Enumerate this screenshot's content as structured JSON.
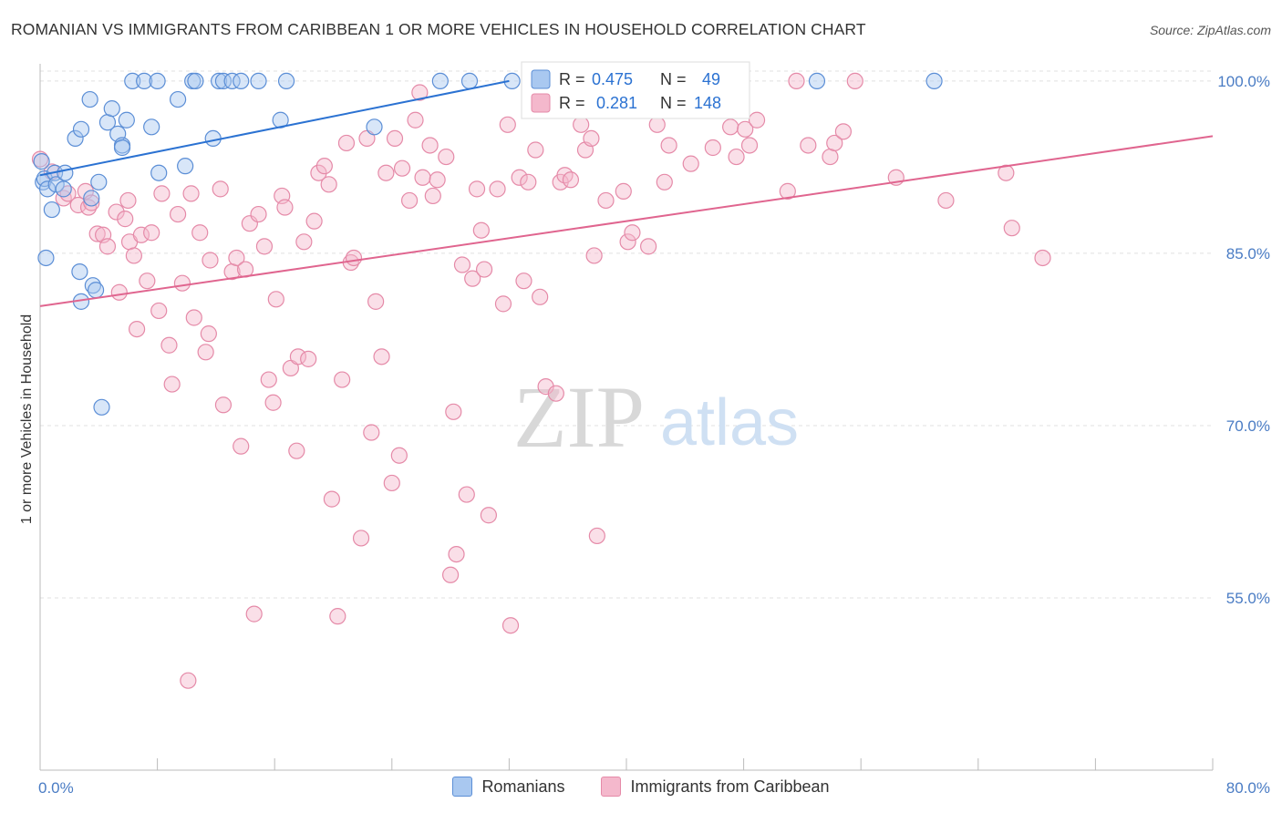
{
  "source_label": "Source: ZipAtlas.com",
  "watermark": {
    "zip": "ZIP",
    "atlas": "atlas"
  },
  "colors": {
    "blue_fill": "#a9c8f0",
    "blue_stroke": "#5b8ed6",
    "blue_line": "#2b72d2",
    "pink_fill": "#f4b8cc",
    "pink_stroke": "#e58aa8",
    "pink_line": "#e0658f",
    "tick_label": "#4a7cc4",
    "grid": "#e0e0e0"
  },
  "chart_data": {
    "type": "scatter",
    "title": "ROMANIAN VS IMMIGRANTS FROM CARIBBEAN 1 OR MORE VEHICLES IN HOUSEHOLD CORRELATION CHART",
    "xlabel": "",
    "ylabel": "1 or more Vehicles in Household",
    "xlim": [
      0,
      80
    ],
    "ylim": [
      40,
      101.5
    ],
    "x_tick_labels": [
      "0.0%",
      "80.0%"
    ],
    "y_ticks": [
      100,
      85,
      70,
      55
    ],
    "y_tick_labels": [
      "100.0%",
      "85.0%",
      "70.0%",
      "55.0%"
    ],
    "grid": true,
    "legend_position": "top-center",
    "series": [
      {
        "name": "Romanians",
        "color": "#a9c8f0",
        "R": "0.475",
        "N": "49",
        "trend": {
          "x": [
            0,
            32
          ],
          "y": [
            91.8,
            100
          ]
        },
        "points": [
          [
            0.1,
            93.0
          ],
          [
            0.2,
            91.2
          ],
          [
            0.3,
            91.5
          ],
          [
            0.5,
            90.6
          ],
          [
            0.4,
            84.6
          ],
          [
            1.0,
            92.0
          ],
          [
            1.1,
            91.0
          ],
          [
            0.8,
            88.8
          ],
          [
            1.7,
            92.0
          ],
          [
            1.6,
            90.6
          ],
          [
            2.4,
            95.0
          ],
          [
            2.8,
            95.8
          ],
          [
            2.7,
            83.4
          ],
          [
            2.8,
            80.8
          ],
          [
            3.5,
            89.8
          ],
          [
            3.4,
            98.4
          ],
          [
            4.0,
            91.2
          ],
          [
            3.6,
            82.2
          ],
          [
            3.8,
            81.8
          ],
          [
            4.2,
            71.6
          ],
          [
            4.6,
            96.4
          ],
          [
            4.9,
            97.6
          ],
          [
            5.3,
            95.4
          ],
          [
            5.6,
            94.4
          ],
          [
            5.6,
            94.2
          ],
          [
            5.9,
            96.6
          ],
          [
            6.3,
            100.0
          ],
          [
            7.1,
            100.0
          ],
          [
            7.6,
            96.0
          ],
          [
            8.0,
            100.0
          ],
          [
            8.1,
            92.0
          ],
          [
            9.4,
            98.4
          ],
          [
            9.9,
            92.6
          ],
          [
            10.4,
            100.0
          ],
          [
            10.6,
            100.0
          ],
          [
            11.8,
            95.0
          ],
          [
            12.2,
            100.0
          ],
          [
            12.5,
            100.0
          ],
          [
            13.1,
            100.0
          ],
          [
            13.7,
            100.0
          ],
          [
            14.9,
            100.0
          ],
          [
            16.4,
            96.6
          ],
          [
            16.8,
            100.0
          ],
          [
            22.8,
            96.0
          ],
          [
            27.3,
            100.0
          ],
          [
            29.3,
            100.0
          ],
          [
            32.2,
            100.0
          ],
          [
            35.6,
            100.0
          ],
          [
            53.0,
            100.0
          ],
          [
            61.0,
            100.0
          ]
        ]
      },
      {
        "name": "Immigrants from Caribbean",
        "color": "#f4b8cc",
        "R": "0.281",
        "N": "148",
        "trend": {
          "x": [
            0,
            80
          ],
          "y": [
            80.4,
            95.2
          ]
        },
        "points": [
          [
            0.0,
            93.2
          ],
          [
            0.8,
            92.1
          ],
          [
            1.6,
            89.8
          ],
          [
            1.9,
            90.2
          ],
          [
            2.6,
            89.2
          ],
          [
            3.3,
            89.0
          ],
          [
            3.1,
            90.4
          ],
          [
            3.5,
            89.4
          ],
          [
            3.9,
            86.7
          ],
          [
            4.3,
            86.6
          ],
          [
            4.6,
            85.6
          ],
          [
            5.2,
            88.6
          ],
          [
            5.4,
            81.6
          ],
          [
            5.8,
            88.0
          ],
          [
            6.0,
            89.6
          ],
          [
            6.1,
            86.0
          ],
          [
            6.4,
            84.8
          ],
          [
            6.6,
            78.4
          ],
          [
            6.9,
            86.6
          ],
          [
            7.3,
            82.6
          ],
          [
            7.6,
            86.8
          ],
          [
            8.1,
            80.0
          ],
          [
            8.3,
            90.2
          ],
          [
            8.8,
            77.0
          ],
          [
            9.0,
            73.6
          ],
          [
            9.4,
            88.4
          ],
          [
            9.7,
            82.4
          ],
          [
            10.1,
            47.8
          ],
          [
            10.3,
            90.2
          ],
          [
            10.5,
            79.4
          ],
          [
            10.9,
            86.8
          ],
          [
            11.3,
            76.4
          ],
          [
            11.5,
            78.0
          ],
          [
            11.6,
            84.4
          ],
          [
            12.3,
            90.6
          ],
          [
            12.5,
            71.8
          ],
          [
            13.1,
            83.4
          ],
          [
            13.4,
            84.6
          ],
          [
            13.7,
            68.2
          ],
          [
            14.0,
            83.6
          ],
          [
            14.3,
            87.6
          ],
          [
            14.6,
            53.6
          ],
          [
            14.9,
            88.4
          ],
          [
            15.3,
            85.6
          ],
          [
            15.6,
            74.0
          ],
          [
            15.9,
            72.0
          ],
          [
            16.1,
            81.0
          ],
          [
            16.5,
            90.0
          ],
          [
            16.7,
            89.0
          ],
          [
            17.1,
            75.0
          ],
          [
            17.5,
            67.8
          ],
          [
            17.6,
            76.0
          ],
          [
            18.0,
            86.0
          ],
          [
            18.3,
            75.8
          ],
          [
            18.7,
            87.8
          ],
          [
            19.0,
            92.0
          ],
          [
            19.4,
            92.6
          ],
          [
            19.7,
            91.0
          ],
          [
            19.9,
            63.6
          ],
          [
            20.3,
            53.4
          ],
          [
            20.6,
            74.0
          ],
          [
            20.9,
            94.6
          ],
          [
            21.2,
            84.2
          ],
          [
            21.4,
            84.6
          ],
          [
            21.9,
            60.2
          ],
          [
            22.3,
            95.0
          ],
          [
            22.6,
            69.4
          ],
          [
            22.9,
            80.8
          ],
          [
            23.3,
            76.0
          ],
          [
            23.6,
            92.0
          ],
          [
            24.0,
            65.0
          ],
          [
            24.2,
            95.0
          ],
          [
            24.5,
            67.4
          ],
          [
            24.7,
            92.4
          ],
          [
            25.2,
            89.6
          ],
          [
            25.6,
            96.6
          ],
          [
            25.9,
            99.0
          ],
          [
            26.1,
            91.6
          ],
          [
            26.6,
            94.4
          ],
          [
            26.8,
            90.0
          ],
          [
            27.1,
            91.4
          ],
          [
            27.7,
            93.4
          ],
          [
            28.0,
            57.0
          ],
          [
            28.2,
            71.2
          ],
          [
            28.4,
            58.8
          ],
          [
            28.8,
            84.0
          ],
          [
            29.1,
            64.0
          ],
          [
            29.5,
            82.8
          ],
          [
            29.8,
            90.6
          ],
          [
            30.1,
            87.0
          ],
          [
            30.3,
            83.6
          ],
          [
            30.6,
            62.2
          ],
          [
            31.2,
            90.6
          ],
          [
            31.6,
            80.6
          ],
          [
            31.9,
            96.2
          ],
          [
            32.1,
            52.6
          ],
          [
            32.7,
            91.6
          ],
          [
            33.0,
            82.6
          ],
          [
            33.3,
            91.2
          ],
          [
            33.8,
            94.0
          ],
          [
            34.1,
            81.2
          ],
          [
            34.5,
            73.4
          ],
          [
            35.2,
            72.8
          ],
          [
            35.5,
            91.2
          ],
          [
            35.8,
            91.8
          ],
          [
            36.2,
            91.4
          ],
          [
            36.9,
            96.2
          ],
          [
            37.2,
            94.0
          ],
          [
            37.6,
            95.0
          ],
          [
            37.8,
            84.8
          ],
          [
            38.0,
            60.4
          ],
          [
            38.6,
            89.6
          ],
          [
            39.8,
            90.4
          ],
          [
            40.1,
            86.0
          ],
          [
            40.4,
            86.8
          ],
          [
            41.5,
            85.6
          ],
          [
            42.1,
            96.2
          ],
          [
            42.6,
            91.2
          ],
          [
            42.9,
            94.4
          ],
          [
            43.6,
            100.0
          ],
          [
            44.1,
            98.6
          ],
          [
            44.4,
            92.8
          ],
          [
            45.9,
            94.2
          ],
          [
            47.1,
            96.0
          ],
          [
            47.5,
            93.4
          ],
          [
            48.1,
            95.8
          ],
          [
            48.4,
            94.4
          ],
          [
            48.9,
            96.6
          ],
          [
            51.0,
            90.4
          ],
          [
            51.6,
            100.0
          ],
          [
            52.4,
            94.4
          ],
          [
            53.9,
            93.4
          ],
          [
            54.2,
            94.6
          ],
          [
            54.8,
            95.6
          ],
          [
            55.6,
            100.0
          ],
          [
            58.4,
            91.6
          ],
          [
            61.8,
            89.6
          ],
          [
            65.9,
            92.0
          ],
          [
            66.3,
            87.2
          ],
          [
            68.4,
            84.6
          ]
        ]
      }
    ]
  }
}
